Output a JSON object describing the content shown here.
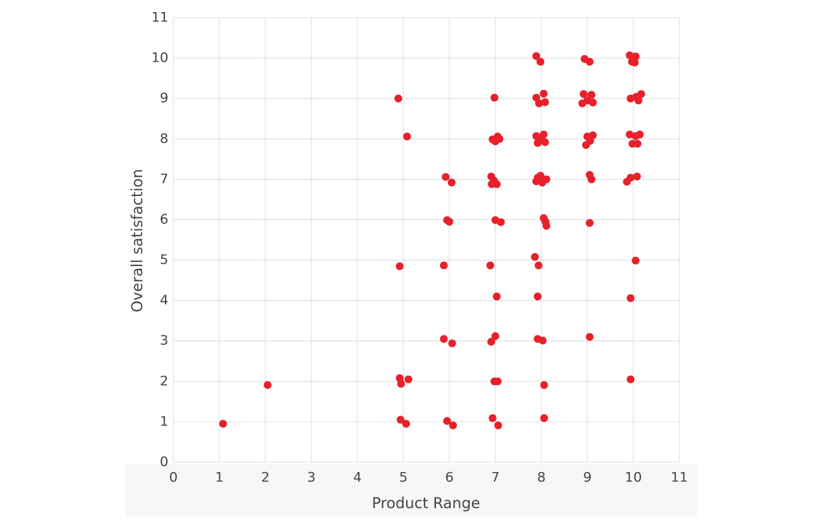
{
  "chart_data": {
    "type": "scatter",
    "x_label": "Product Range",
    "y_label": "Overall satisfaction",
    "color": "#e8202a",
    "grid": true,
    "xlim": [
      0,
      11
    ],
    "ylim": [
      0,
      11
    ],
    "xticks": [
      0,
      1,
      2,
      3,
      4,
      5,
      6,
      7,
      8,
      9,
      10,
      11
    ],
    "yticks": [
      0,
      1,
      2,
      3,
      4,
      5,
      6,
      7,
      8,
      9,
      10,
      11
    ],
    "x": [
      1.08,
      2.05,
      4.89,
      5.08,
      4.92,
      4.92,
      4.95,
      5.11,
      4.94,
      5.06,
      5.92,
      6.05,
      5.95,
      6.0,
      5.88,
      5.88,
      6.06,
      5.95,
      6.08,
      6.98,
      6.94,
      7.05,
      7.0,
      7.09,
      6.91,
      6.92,
      7.03,
      6.97,
      7.0,
      7.12,
      6.89,
      7.03,
      7.0,
      6.91,
      6.98,
      7.05,
      6.94,
      7.06,
      7.89,
      7.98,
      7.89,
      8.05,
      7.95,
      8.08,
      7.89,
      8.05,
      7.92,
      8.08,
      8.0,
      7.92,
      7.98,
      8.11,
      7.89,
      8.02,
      8.05,
      8.09,
      8.11,
      7.86,
      7.94,
      7.92,
      7.92,
      8.03,
      8.06,
      8.06,
      8.94,
      9.05,
      8.92,
      9.09,
      8.89,
      9.0,
      9.12,
      9.0,
      9.12,
      8.97,
      9.06,
      9.05,
      9.09,
      9.05,
      9.05,
      9.92,
      10.05,
      9.97,
      10.03,
      9.94,
      10.06,
      10.17,
      10.11,
      9.92,
      10.05,
      10.14,
      9.98,
      10.09,
      9.86,
      9.94,
      10.08,
      10.05,
      9.94,
      9.94
    ],
    "y": [
      0.95,
      1.91,
      9.0,
      8.06,
      4.85,
      2.08,
      1.94,
      2.05,
      1.05,
      0.95,
      7.06,
      6.92,
      5.99,
      5.95,
      4.87,
      3.05,
      2.94,
      1.02,
      0.91,
      9.02,
      7.99,
      8.06,
      7.94,
      8.0,
      7.07,
      6.88,
      6.88,
      6.97,
      5.99,
      5.94,
      4.87,
      4.1,
      3.12,
      2.98,
      2.0,
      2.0,
      1.09,
      0.91,
      10.05,
      9.91,
      9.02,
      9.12,
      8.88,
      8.91,
      8.07,
      8.11,
      7.9,
      7.92,
      8.0,
      7.04,
      7.09,
      7.0,
      6.95,
      6.92,
      6.04,
      5.95,
      5.85,
      5.08,
      4.87,
      4.1,
      3.05,
      3.01,
      1.91,
      1.09,
      9.98,
      9.91,
      9.11,
      9.09,
      8.88,
      8.95,
      8.9,
      8.06,
      8.09,
      7.85,
      7.95,
      7.11,
      7.0,
      5.92,
      3.1,
      10.07,
      10.04,
      9.91,
      9.89,
      9.0,
      9.04,
      9.11,
      8.95,
      8.11,
      8.07,
      8.11,
      7.88,
      7.88,
      6.94,
      7.04,
      7.07,
      4.99,
      4.06,
      2.05
    ]
  }
}
